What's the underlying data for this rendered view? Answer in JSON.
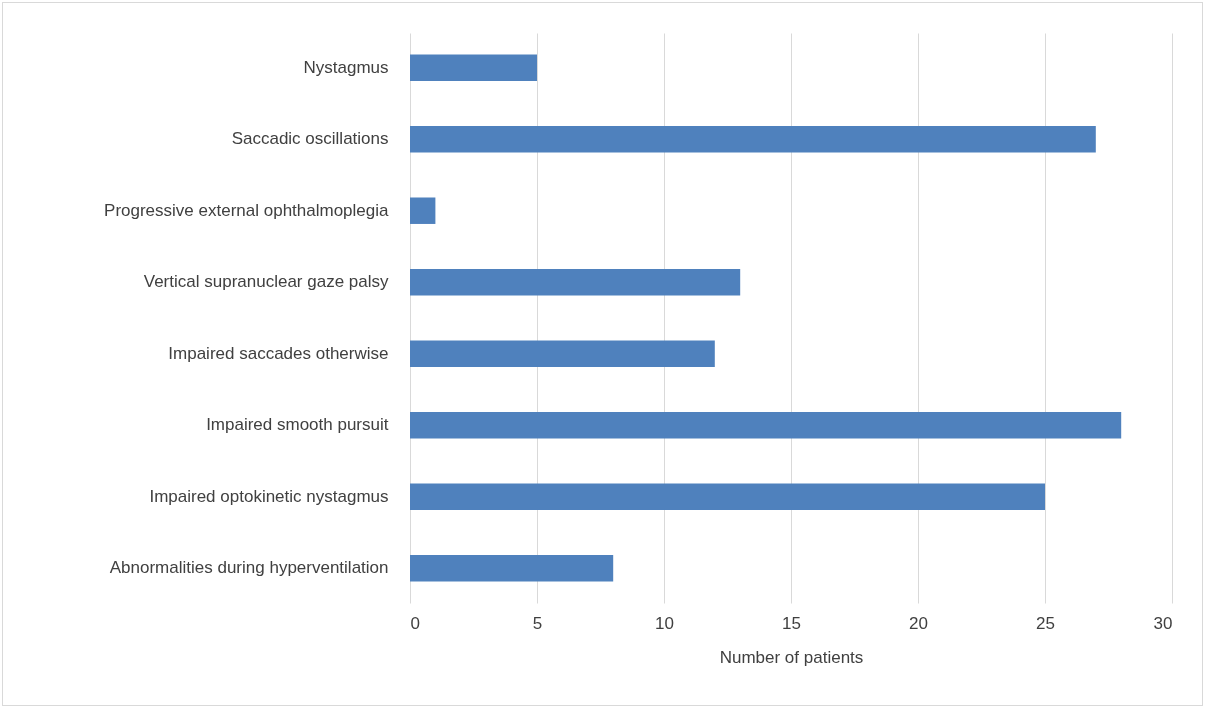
{
  "chart_data": {
    "type": "bar",
    "orientation": "horizontal",
    "xlabel": "Number of patients",
    "categories": [
      "Nystagmus",
      "Saccadic oscillations",
      "Progressive external ophthalmoplegia",
      "Vertical supranuclear gaze palsy",
      "Impaired saccades otherwise",
      "Impaired smooth pursuit",
      "Impaired optokinetic nystagmus",
      "Abnormalities during hyperventilation"
    ],
    "values": [
      5,
      27,
      1,
      13,
      12,
      28,
      25,
      8
    ],
    "color": "#4f81bd",
    "xlim": [
      0,
      30
    ],
    "xticks": [
      0,
      5,
      10,
      15,
      20,
      25,
      30
    ],
    "grid": "x"
  }
}
